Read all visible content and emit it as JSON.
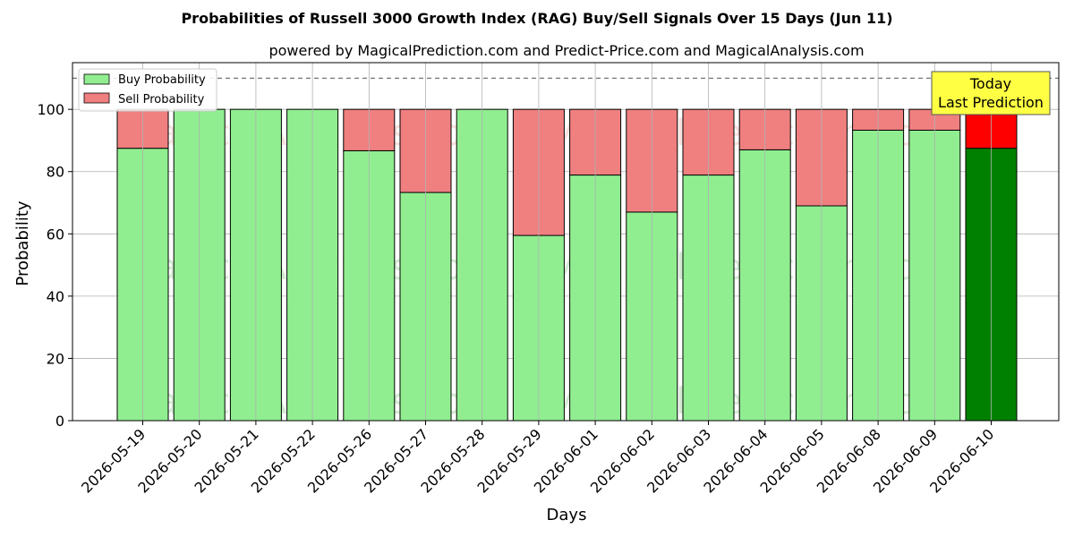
{
  "chart_data": {
    "type": "bar",
    "stacked": true,
    "title": "Probabilities of Russell 3000 Growth Index (RAG) Buy/Sell Signals Over 15 Days (Jun 11)",
    "subtitle": "powered by MagicalPrediction.com and Predict-Price.com and MagicalAnalysis.com",
    "xlabel": "Days",
    "ylabel": "Probability",
    "ylim": [
      0,
      115
    ],
    "yticks": [
      0,
      20,
      40,
      60,
      80,
      100
    ],
    "threshold_line": 110,
    "grid": true,
    "legend_position": "top-left",
    "categories": [
      "2026-05-19",
      "2026-05-20",
      "2026-05-21",
      "2026-05-22",
      "2026-05-26",
      "2026-05-27",
      "2026-05-28",
      "2026-05-29",
      "2026-06-01",
      "2026-06-02",
      "2026-06-03",
      "2026-06-04",
      "2026-06-05",
      "2026-06-08",
      "2026-06-09",
      "2026-06-10"
    ],
    "series": [
      {
        "name": "Buy Probability",
        "color": "#90ee90",
        "highlight_color": "#008000",
        "values": [
          87.5,
          100,
          100,
          100,
          86.7,
          73.3,
          100,
          59.5,
          78.9,
          67,
          78.9,
          87,
          69,
          93.3,
          93.3,
          87.5
        ]
      },
      {
        "name": "Sell Probability",
        "color": "#f08080",
        "highlight_color": "#ff0000",
        "values": [
          12.5,
          0,
          0,
          0,
          13.3,
          26.7,
          0,
          40.5,
          21.1,
          33,
          21.1,
          13,
          31,
          6.7,
          6.7,
          12.5
        ]
      }
    ],
    "highlight_index": 15,
    "callout": {
      "line1": "Today",
      "line2": "Last Prediction",
      "color": "#ffff44"
    },
    "watermarks": [
      "MagicalAnalysis.com",
      "MagicalPrediction.com"
    ]
  }
}
